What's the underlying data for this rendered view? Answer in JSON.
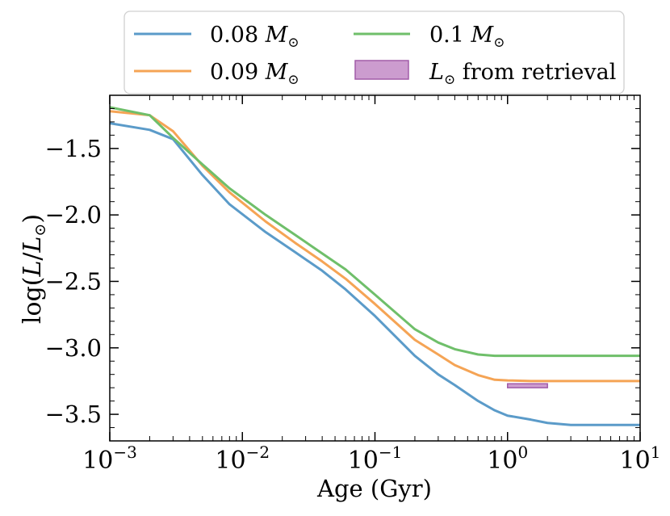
{
  "chart_data": {
    "type": "line",
    "xscale": "log",
    "xlim": [
      0.001,
      10
    ],
    "ylim": [
      -3.7,
      -1.1
    ],
    "xlabel": "Age (Gyr)",
    "ylabel": "log(L/L⊙)",
    "x_ticks": [
      {
        "value": 0.001,
        "base": "10",
        "exp": "−3"
      },
      {
        "value": 0.01,
        "base": "10",
        "exp": "−2"
      },
      {
        "value": 0.1,
        "base": "10",
        "exp": "−1"
      },
      {
        "value": 1,
        "base": "10",
        "exp": "0"
      },
      {
        "value": 10,
        "base": "10",
        "exp": "1"
      }
    ],
    "y_ticks": [
      {
        "value": -1.5,
        "label": "−1.5"
      },
      {
        "value": -2.0,
        "label": "−2.0"
      },
      {
        "value": -2.5,
        "label": "−2.5"
      },
      {
        "value": -3.0,
        "label": "−3.0"
      },
      {
        "value": -3.5,
        "label": "−3.5"
      }
    ],
    "series": [
      {
        "name": "0.08 M⊙",
        "color": "#5b9bc9",
        "x": [
          0.001,
          0.002,
          0.003,
          0.005,
          0.008,
          0.015,
          0.025,
          0.04,
          0.06,
          0.1,
          0.2,
          0.3,
          0.4,
          0.6,
          0.8,
          1.0,
          1.5,
          2.0,
          3.0,
          5.0,
          10.0
        ],
        "y": [
          -1.31,
          -1.36,
          -1.43,
          -1.7,
          -1.92,
          -2.13,
          -2.28,
          -2.42,
          -2.56,
          -2.76,
          -3.06,
          -3.2,
          -3.28,
          -3.4,
          -3.47,
          -3.51,
          -3.54,
          -3.565,
          -3.58,
          -3.58,
          -3.58
        ]
      },
      {
        "name": "0.09 M⊙",
        "color": "#f5a455",
        "x": [
          0.001,
          0.002,
          0.003,
          0.005,
          0.008,
          0.015,
          0.025,
          0.04,
          0.06,
          0.1,
          0.2,
          0.3,
          0.4,
          0.6,
          0.8,
          1.0,
          1.5,
          2.0,
          3.0,
          5.0,
          10.0
        ],
        "y": [
          -1.22,
          -1.25,
          -1.37,
          -1.63,
          -1.83,
          -2.05,
          -2.21,
          -2.35,
          -2.48,
          -2.67,
          -2.94,
          -3.05,
          -3.13,
          -3.205,
          -3.24,
          -3.245,
          -3.25,
          -3.25,
          -3.25,
          -3.25,
          -3.25
        ]
      },
      {
        "name": "0.1 M⊙",
        "color": "#6fbf6a",
        "x": [
          0.001,
          0.002,
          0.003,
          0.005,
          0.008,
          0.015,
          0.025,
          0.04,
          0.06,
          0.1,
          0.2,
          0.3,
          0.4,
          0.6,
          0.8,
          1.0,
          1.5,
          2.0,
          3.0,
          5.0,
          10.0
        ],
        "y": [
          -1.19,
          -1.25,
          -1.42,
          -1.62,
          -1.8,
          -2.0,
          -2.15,
          -2.29,
          -2.41,
          -2.6,
          -2.86,
          -2.96,
          -3.01,
          -3.05,
          -3.06,
          -3.06,
          -3.06,
          -3.06,
          -3.06,
          -3.06,
          -3.06
        ]
      }
    ],
    "band": {
      "name": "L⊙ from retrieval",
      "color": "#cc9ccf",
      "edge": "#a25ca9",
      "x_range": [
        1.0,
        2.0
      ],
      "y_range": [
        -3.3,
        -3.27
      ]
    },
    "legend": {
      "position": "top",
      "entries": [
        {
          "base": "0.08 ",
          "italic": "M",
          "sub": "⊙"
        },
        {
          "base": "0.09 ",
          "italic": "M",
          "sub": "⊙"
        },
        {
          "base": "0.1 ",
          "italic": "M",
          "sub": "⊙"
        },
        {
          "italic": "L",
          "sub": "⊙",
          "rest": " from retrieval"
        }
      ]
    },
    "ylabel_parts": {
      "pre": "log(",
      "italic1": "L",
      "slash": "/",
      "italic2": "L",
      "sub": "⊙",
      "post": ")"
    }
  }
}
